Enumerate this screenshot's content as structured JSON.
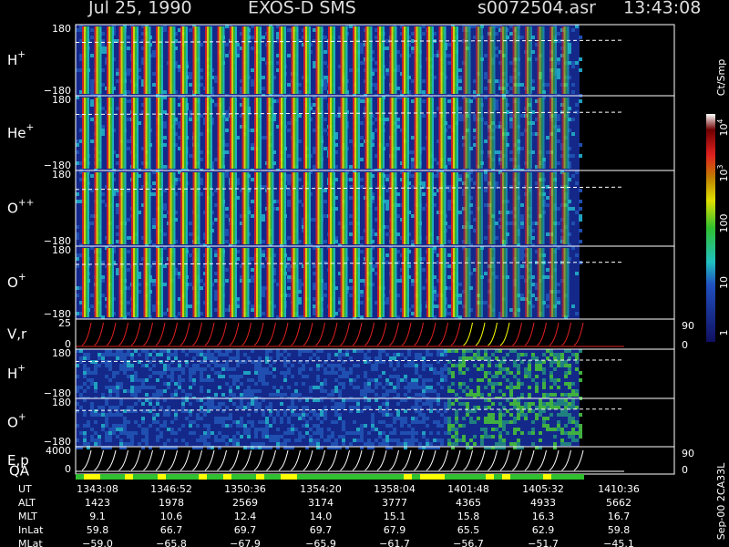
{
  "header": {
    "date": "Jul 25, 1990",
    "instrument": "EXOS-D SMS",
    "file": "s0072504.asr",
    "time": "13:43:08"
  },
  "panels": [
    {
      "label": {
        "base": "H",
        "sup": "+"
      },
      "ytop": "180",
      "ybottom": "−180"
    },
    {
      "label": {
        "base": "He",
        "sup": "+"
      },
      "ytop": "180",
      "ybottom": "−180"
    },
    {
      "label": {
        "base": "O",
        "sup": "++"
      },
      "ytop": "180",
      "ybottom": "−180"
    },
    {
      "label": {
        "base": "O",
        "sup": "+"
      },
      "ytop": "180",
      "ybottom": "−180"
    },
    {
      "label": {
        "base": "V,r"
      },
      "ytop": "25",
      "ybottom": "0",
      "rtop": "90",
      "rbottom": "0"
    },
    {
      "label": {
        "base": "H",
        "sup": "+"
      },
      "ytop": "180",
      "ybottom": "−180"
    },
    {
      "label": {
        "base": "O",
        "sup": "+"
      },
      "ytop": "180",
      "ybottom": "−180"
    },
    {
      "label": {
        "base": "E,p"
      },
      "ytop": "4000",
      "ybottom": "0",
      "rtop": "90",
      "rbottom": "0"
    }
  ],
  "qa_label": "QA",
  "colorbar": {
    "title": "Ct/Smp",
    "labels": [
      {
        "base": "10",
        "sup": "4"
      },
      {
        "base": "10",
        "sup": "3"
      },
      {
        "base": "100"
      },
      {
        "base": "10"
      },
      {
        "base": "1"
      }
    ]
  },
  "footer_id": "Sep-00 2CA33L",
  "table": {
    "rows": [
      {
        "label": "UT",
        "cells": [
          "1343:08",
          "1346:52",
          "1350:36",
          "1354:20",
          "1358:04",
          "1401:48",
          "1405:32",
          "1410:36"
        ]
      },
      {
        "label": "ALT",
        "cells": [
          "1423",
          "1978",
          "2569",
          "3174",
          "3777",
          "4365",
          "4933",
          "5662"
        ]
      },
      {
        "label": "MLT",
        "cells": [
          "9.1",
          "10.6",
          "12.4",
          "14.0",
          "15.1",
          "15.8",
          "16.3",
          "16.7"
        ]
      },
      {
        "label": "InLat",
        "cells": [
          "59.8",
          "66.7",
          "69.7",
          "69.7",
          "67.9",
          "65.5",
          "62.9",
          "59.8"
        ]
      },
      {
        "label": "MLat",
        "cells": [
          "−59.0",
          "−65.8",
          "−67.9",
          "−65.9",
          "−61.7",
          "−56.7",
          "−51.7",
          "−45.1"
        ]
      }
    ]
  }
}
